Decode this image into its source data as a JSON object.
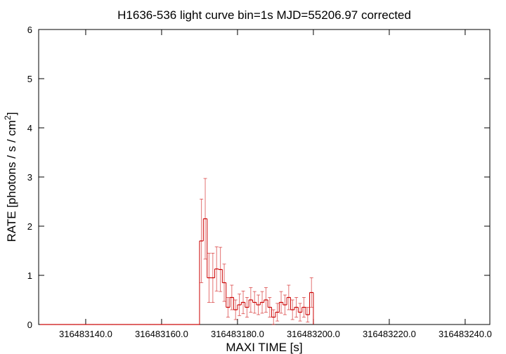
{
  "chart_data": {
    "type": "line",
    "title": "H1636-536 light curve bin=1s MJD=55206.97 corrected",
    "xlabel": "MAXI TIME [s]",
    "ylabel": [
      "RATE [photons / s / cm",
      "2",
      "]"
    ],
    "xlim": [
      316483127.6,
      316483246.5
    ],
    "ylim": [
      0,
      6
    ],
    "xticks": [
      {
        "value": 316483140,
        "label": "316483140.0"
      },
      {
        "value": 316483160,
        "label": "316483160.0"
      },
      {
        "value": 316483180,
        "label": "316483180.0"
      },
      {
        "value": 316483200,
        "label": "316483200.0"
      },
      {
        "value": 316483220,
        "label": "316483220.0"
      },
      {
        "value": 316483240,
        "label": "316483240.0"
      }
    ],
    "yticks": [
      0,
      1,
      2,
      3,
      4,
      5,
      6
    ],
    "grid": false,
    "x": [
      316483128.5,
      316483129.5,
      316483130.5,
      316483131.5,
      316483132.5,
      316483133.5,
      316483134.5,
      316483135.5,
      316483136.5,
      316483137.5,
      316483138.5,
      316483139.5,
      316483140.5,
      316483141.5,
      316483142.5,
      316483143.5,
      316483144.5,
      316483145.5,
      316483146.5,
      316483147.5,
      316483148.5,
      316483149.5,
      316483150.5,
      316483151.5,
      316483152.5,
      316483153.5,
      316483154.5,
      316483155.5,
      316483156.5,
      316483157.5,
      316483158.5,
      316483159.5,
      316483160.5,
      316483161.5,
      316483162.5,
      316483163.5,
      316483164.5,
      316483165.5,
      316483166.5,
      316483167.5,
      316483168.5,
      316483169.5,
      316483170.5,
      316483171.5,
      316483172.5,
      316483173.5,
      316483174.5,
      316483175.5,
      316483176.5,
      316483177.5,
      316483178.5,
      316483179.5,
      316483180.5,
      316483181.5,
      316483182.5,
      316483183.5,
      316483184.5,
      316483185.5,
      316483186.5,
      316483187.5,
      316483188.5,
      316483189.5,
      316483190.5,
      316483191.5,
      316483192.5,
      316483193.5,
      316483194.5,
      316483195.5,
      316483196.5,
      316483197.5,
      316483198.5,
      316483199.5
    ],
    "series": [
      {
        "color": "#cc0000",
        "values": [
          0,
          0,
          0,
          0,
          0,
          0,
          0,
          0,
          0,
          0,
          0,
          0,
          0,
          0,
          0,
          0,
          0,
          0,
          0,
          0,
          0,
          0,
          0,
          0,
          0,
          0,
          0,
          0,
          0,
          0,
          0,
          0,
          0,
          0,
          0,
          0,
          0,
          0,
          0,
          0,
          0,
          0,
          1.7,
          2.15,
          0.95,
          0.95,
          1.13,
          1.12,
          0.85,
          0.35,
          0.55,
          0.3,
          0.4,
          0.45,
          0.35,
          0.5,
          0.45,
          0.4,
          0.45,
          0.5,
          0.35,
          0.15,
          0.25,
          0.45,
          0.4,
          0.55,
          0.3,
          0.35,
          0.25,
          0.35,
          0.2,
          0.65
        ],
        "errors": [
          0,
          0,
          0,
          0,
          0,
          0,
          0,
          0,
          0,
          0,
          0,
          0,
          0,
          0,
          0,
          0,
          0,
          0,
          0,
          0,
          0,
          0,
          0,
          0,
          0,
          0,
          0,
          0,
          0,
          0,
          0,
          0,
          0,
          0,
          0,
          0,
          0,
          0,
          0,
          0,
          0,
          0,
          0.85,
          0.82,
          0.5,
          0.5,
          0.45,
          0.45,
          0.38,
          0.2,
          0.25,
          0.2,
          0.22,
          0.23,
          0.2,
          0.25,
          0.22,
          0.2,
          0.22,
          0.25,
          0.2,
          0.15,
          0.18,
          0.22,
          0.2,
          0.25,
          0.2,
          0.2,
          0.18,
          0.2,
          0.15,
          0.3
        ]
      }
    ]
  }
}
